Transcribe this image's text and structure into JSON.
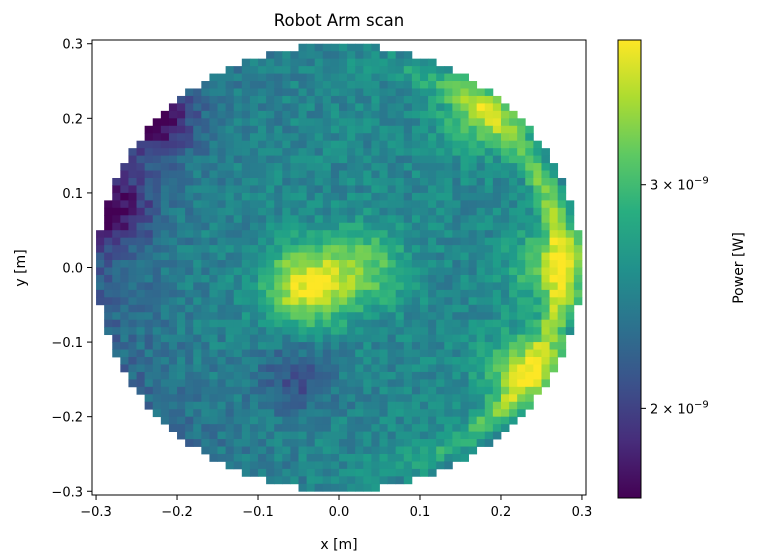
{
  "chart_data": {
    "type": "heatmap",
    "title": "Robot Arm scan",
    "xlabel": "x [m]",
    "ylabel": "y [m]",
    "xlim": [
      -0.305,
      0.305
    ],
    "ylim": [
      -0.305,
      0.305
    ],
    "x_ticks": [
      {
        "value": -0.3,
        "label": "−0.3"
      },
      {
        "value": -0.2,
        "label": "−0.2"
      },
      {
        "value": -0.1,
        "label": "−0.1"
      },
      {
        "value": 0.0,
        "label": "0.0"
      },
      {
        "value": 0.1,
        "label": "0.1"
      },
      {
        "value": 0.2,
        "label": "0.2"
      },
      {
        "value": 0.3,
        "label": "0.3"
      }
    ],
    "y_ticks": [
      {
        "value": 0.3,
        "label": "0.3"
      },
      {
        "value": 0.2,
        "label": "0.2"
      },
      {
        "value": 0.1,
        "label": "0.1"
      },
      {
        "value": 0.0,
        "label": "0.0"
      },
      {
        "value": -0.1,
        "label": "−0.1"
      },
      {
        "value": -0.2,
        "label": "−0.2"
      },
      {
        "value": -0.3,
        "label": "−0.3"
      }
    ],
    "scan_radius": 0.3,
    "grid": false,
    "colormap": "viridis",
    "colorbar": {
      "label": "Power [W]",
      "scale": "log",
      "range": [
        1.7e-09,
        3.9e-09
      ],
      "ticks": [
        {
          "value": 3e-09,
          "mantissa": "3",
          "exponent": "−9"
        },
        {
          "value": 2e-09,
          "mantissa": "2",
          "exponent": "−9"
        }
      ]
    },
    "features": [
      {
        "x": -0.04,
        "y": -0.025,
        "value": 3.8e-09
      },
      {
        "x": 0.03,
        "y": 0.0,
        "value": 3.2e-09
      },
      {
        "x": 0.27,
        "y": 0.0,
        "value": 3.4e-09
      },
      {
        "x": 0.18,
        "y": 0.21,
        "value": 3.3e-09
      },
      {
        "x": 0.23,
        "y": -0.14,
        "value": 3.4e-09
      },
      {
        "x": -0.28,
        "y": 0.08,
        "value": 1.85e-09
      },
      {
        "x": -0.23,
        "y": 0.2,
        "value": 1.8e-09
      },
      {
        "x": -0.05,
        "y": -0.15,
        "value": 2.1e-09
      }
    ],
    "base_value": 2.5e-09
  }
}
